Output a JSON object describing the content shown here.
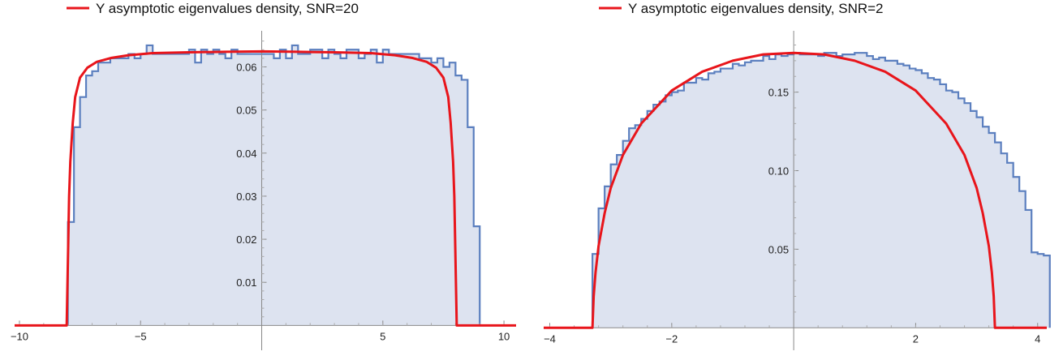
{
  "chart_data": [
    {
      "type": "area",
      "title": "",
      "xlabel": "",
      "ylabel": "",
      "xlim": [
        -10.2,
        10.5
      ],
      "ylim": [
        -0.002,
        0.068
      ],
      "xticks": [
        -10,
        -5,
        5,
        10
      ],
      "xtick_labels": [
        "−10",
        "−5",
        "5",
        "10"
      ],
      "yticks": [
        0.01,
        0.02,
        0.03,
        0.04,
        0.05,
        0.06
      ],
      "ytick_labels": [
        "0.01",
        "0.02",
        "0.03",
        "0.04",
        "0.05",
        "0.06"
      ],
      "grid": false,
      "legend_position": "top",
      "colors": {
        "histogram_line": "#5b7fbf",
        "histogram_fill": "#dde3f0",
        "density_line": "#e8151b"
      },
      "series": [
        {
          "name": "Y asymptotic eigenvalues density, SNR=20",
          "kind": "line",
          "x": [
            -10.2,
            -8.05,
            -8.0,
            -7.95,
            -7.9,
            -7.8,
            -7.7,
            -7.5,
            -7.2,
            -6.8,
            -6.2,
            -5.5,
            -4.5,
            -3,
            -1.5,
            0,
            1.5,
            3,
            4.5,
            5.5,
            6.2,
            6.8,
            7.2,
            7.5,
            7.7,
            7.8,
            7.9,
            7.95,
            8.0,
            8.05,
            10.5
          ],
          "y": [
            0,
            0,
            0.015,
            0.03,
            0.038,
            0.047,
            0.053,
            0.0575,
            0.0598,
            0.0612,
            0.0621,
            0.0627,
            0.0632,
            0.0634,
            0.0635,
            0.0636,
            0.0635,
            0.0634,
            0.0632,
            0.0627,
            0.0621,
            0.0612,
            0.0598,
            0.0575,
            0.053,
            0.047,
            0.038,
            0.03,
            0.015,
            0,
            0
          ]
        },
        {
          "name": "histogram",
          "kind": "step",
          "bin_width": 0.25,
          "bin_start": -8.0,
          "values": [
            0.024,
            0.046,
            0.053,
            0.058,
            0.059,
            0.061,
            0.061,
            0.062,
            0.062,
            0.062,
            0.063,
            0.062,
            0.063,
            0.065,
            0.063,
            0.063,
            0.063,
            0.063,
            0.063,
            0.063,
            0.064,
            0.061,
            0.064,
            0.063,
            0.064,
            0.063,
            0.062,
            0.064,
            0.063,
            0.063,
            0.063,
            0.063,
            0.063,
            0.063,
            0.062,
            0.064,
            0.062,
            0.065,
            0.063,
            0.063,
            0.064,
            0.064,
            0.062,
            0.064,
            0.063,
            0.062,
            0.064,
            0.064,
            0.062,
            0.063,
            0.064,
            0.061,
            0.064,
            0.063,
            0.063,
            0.063,
            0.063,
            0.063,
            0.062,
            0.062,
            0.061,
            0.062,
            0.06,
            0.061,
            0.058,
            0.057,
            0.046,
            0.023
          ]
        }
      ]
    },
    {
      "type": "area",
      "title": "",
      "xlabel": "",
      "ylabel": "",
      "xlim": [
        -4.1,
        4.15
      ],
      "ylim": [
        -0.004,
        0.188
      ],
      "xticks": [
        -4,
        -2,
        2,
        4
      ],
      "xtick_labels": [
        "−4",
        "−2",
        "2",
        "4"
      ],
      "yticks": [
        0.05,
        0.1,
        0.15
      ],
      "ytick_labels": [
        "0.05",
        "0.10",
        "0.15"
      ],
      "grid": false,
      "legend_position": "top",
      "colors": {
        "histogram_line": "#5b7fbf",
        "histogram_fill": "#dde3f0",
        "density_line": "#e8151b"
      },
      "series": [
        {
          "name": "Y asymptotic eigenvalues density, SNR=2",
          "kind": "line",
          "x": [
            -4.1,
            -3.3,
            -3.28,
            -3.25,
            -3.2,
            -3.1,
            -3.0,
            -2.8,
            -2.5,
            -2.0,
            -1.5,
            -1.0,
            -0.5,
            0,
            0.5,
            1.0,
            1.5,
            2.0,
            2.5,
            2.8,
            3.0,
            3.1,
            3.2,
            3.25,
            3.28,
            3.3,
            4.15
          ],
          "y": [
            0,
            0,
            0.02,
            0.035,
            0.052,
            0.073,
            0.089,
            0.11,
            0.13,
            0.151,
            0.163,
            0.17,
            0.174,
            0.175,
            0.174,
            0.17,
            0.163,
            0.151,
            0.13,
            0.11,
            0.089,
            0.073,
            0.052,
            0.035,
            0.02,
            0,
            0
          ]
        },
        {
          "name": "histogram",
          "kind": "step",
          "bin_width": 0.1,
          "bin_start": -3.3,
          "values": [
            0.047,
            0.076,
            0.09,
            0.104,
            0.11,
            0.119,
            0.127,
            0.129,
            0.133,
            0.138,
            0.142,
            0.144,
            0.148,
            0.15,
            0.151,
            0.156,
            0.156,
            0.159,
            0.158,
            0.162,
            0.163,
            0.165,
            0.165,
            0.168,
            0.167,
            0.169,
            0.17,
            0.17,
            0.173,
            0.171,
            0.174,
            0.173,
            0.174,
            0.175,
            0.174,
            0.174,
            0.174,
            0.173,
            0.175,
            0.175,
            0.173,
            0.174,
            0.174,
            0.175,
            0.175,
            0.173,
            0.171,
            0.172,
            0.17,
            0.17,
            0.168,
            0.167,
            0.165,
            0.164,
            0.162,
            0.159,
            0.158,
            0.155,
            0.151,
            0.15,
            0.146,
            0.143,
            0.138,
            0.134,
            0.128,
            0.124,
            0.118,
            0.111,
            0.105,
            0.096,
            0.087,
            0.075,
            0.048,
            0.047,
            0.046
          ]
        }
      ]
    }
  ]
}
